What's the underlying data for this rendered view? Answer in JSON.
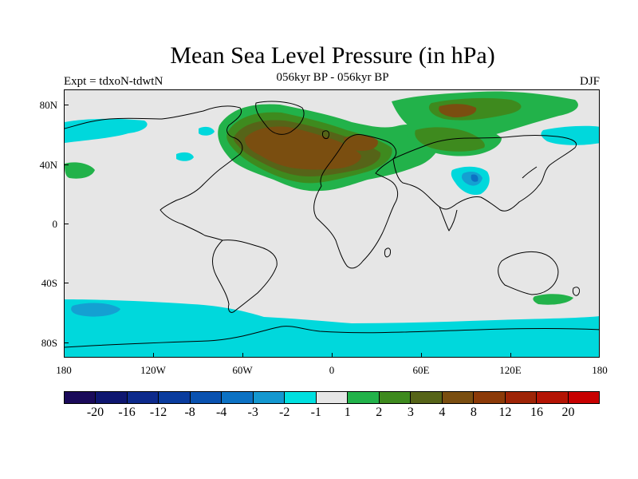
{
  "title": "Mean Sea Level Pressure (in hPa)",
  "subtitle": "056kyr BP - 056kyr BP",
  "experiment_label": "Expt = tdxoN-tdwtN",
  "season": "DJF",
  "map": {
    "lat_ticks": [
      "80N",
      "40N",
      "0",
      "40S",
      "80S"
    ],
    "lon_ticks": [
      "180",
      "120W",
      "60W",
      "0",
      "60E",
      "120E",
      "180"
    ],
    "background_color": "#e6e6e6",
    "coastline_color": "#000000"
  },
  "colorbar": {
    "colors": [
      "#1a0a5a",
      "#0e1670",
      "#0d2a8c",
      "#0a3c9e",
      "#0a52b0",
      "#0c72c4",
      "#1498d0",
      "#00e0e0",
      "#e6e6e6",
      "#22b24a",
      "#3e8a1e",
      "#566418",
      "#7a4e10",
      "#8c3a08",
      "#9e2406",
      "#b41404",
      "#c80000"
    ],
    "labels": [
      "-20",
      "-16",
      "-12",
      "-8",
      "-4",
      "-3",
      "-2",
      "-1",
      "1",
      "2",
      "3",
      "4",
      "8",
      "12",
      "16",
      "20"
    ]
  }
}
